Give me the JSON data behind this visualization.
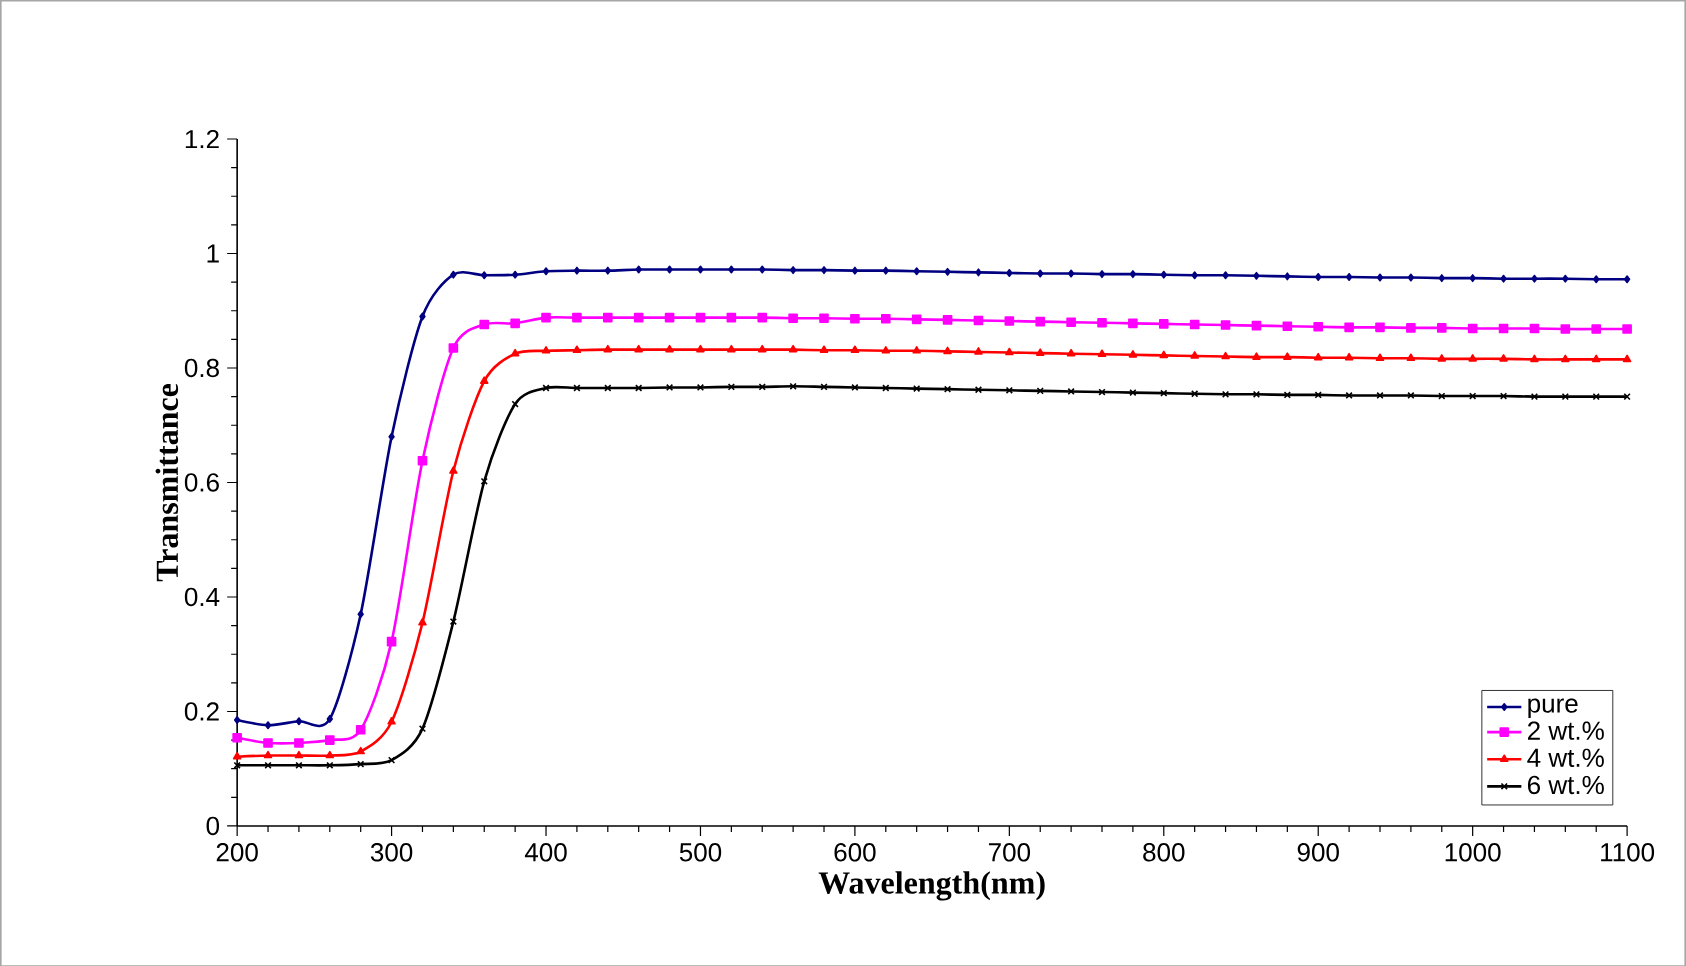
{
  "chart_data": {
    "type": "line",
    "xlabel": "Wavelength(nm)",
    "ylabel": "Transmittance",
    "x": [
      200,
      220,
      240,
      260,
      280,
      300,
      320,
      340,
      360,
      380,
      400,
      420,
      440,
      460,
      480,
      500,
      520,
      540,
      560,
      580,
      600,
      620,
      640,
      660,
      680,
      700,
      720,
      740,
      760,
      780,
      800,
      820,
      840,
      860,
      880,
      900,
      920,
      940,
      960,
      980,
      1000,
      1020,
      1040,
      1060,
      1080,
      1100
    ],
    "series": [
      {
        "name": "pure",
        "color": "#000080",
        "marker": "diamond",
        "values": [
          0.185,
          0.176,
          0.183,
          0.187,
          0.37,
          0.68,
          0.89,
          0.963,
          0.962,
          0.963,
          0.969,
          0.97,
          0.97,
          0.972,
          0.972,
          0.972,
          0.972,
          0.972,
          0.971,
          0.971,
          0.97,
          0.97,
          0.969,
          0.968,
          0.967,
          0.966,
          0.965,
          0.965,
          0.964,
          0.964,
          0.963,
          0.962,
          0.962,
          0.961,
          0.96,
          0.959,
          0.959,
          0.958,
          0.958,
          0.957,
          0.957,
          0.956,
          0.956,
          0.956,
          0.955,
          0.955
        ]
      },
      {
        "name": "2 wt.%",
        "color": "#ff00ff",
        "marker": "square",
        "values": [
          0.154,
          0.145,
          0.145,
          0.15,
          0.168,
          0.322,
          0.638,
          0.835,
          0.876,
          0.878,
          0.888,
          0.888,
          0.888,
          0.888,
          0.888,
          0.888,
          0.888,
          0.888,
          0.887,
          0.887,
          0.886,
          0.886,
          0.885,
          0.884,
          0.883,
          0.882,
          0.881,
          0.88,
          0.879,
          0.878,
          0.877,
          0.876,
          0.875,
          0.874,
          0.873,
          0.872,
          0.871,
          0.871,
          0.87,
          0.87,
          0.869,
          0.869,
          0.869,
          0.868,
          0.868,
          0.868
        ]
      },
      {
        "name": "4 wt.%",
        "color": "#ff0000",
        "marker": "triangle",
        "values": [
          0.121,
          0.123,
          0.123,
          0.123,
          0.13,
          0.182,
          0.355,
          0.62,
          0.777,
          0.825,
          0.83,
          0.831,
          0.832,
          0.832,
          0.832,
          0.832,
          0.832,
          0.832,
          0.832,
          0.831,
          0.831,
          0.83,
          0.83,
          0.829,
          0.828,
          0.827,
          0.826,
          0.825,
          0.824,
          0.823,
          0.822,
          0.821,
          0.82,
          0.819,
          0.819,
          0.818,
          0.818,
          0.817,
          0.817,
          0.816,
          0.816,
          0.816,
          0.815,
          0.815,
          0.815,
          0.815
        ]
      },
      {
        "name": "6 wt.%",
        "color": "#000000",
        "marker": "cross",
        "values": [
          0.106,
          0.106,
          0.106,
          0.106,
          0.108,
          0.115,
          0.17,
          0.357,
          0.602,
          0.737,
          0.765,
          0.765,
          0.765,
          0.765,
          0.766,
          0.766,
          0.767,
          0.767,
          0.768,
          0.767,
          0.766,
          0.765,
          0.764,
          0.763,
          0.762,
          0.761,
          0.76,
          0.759,
          0.758,
          0.757,
          0.756,
          0.755,
          0.754,
          0.754,
          0.753,
          0.753,
          0.752,
          0.752,
          0.752,
          0.751,
          0.751,
          0.751,
          0.75,
          0.75,
          0.75,
          0.75
        ]
      }
    ],
    "xlim": [
      200,
      1100
    ],
    "xticks": [
      200,
      300,
      400,
      500,
      600,
      700,
      800,
      900,
      1000,
      1100
    ],
    "ylim": [
      0,
      1.2
    ],
    "yticks": [
      0,
      0.2,
      0.4,
      0.6,
      0.8,
      1,
      1.2
    ],
    "grid": false,
    "legend": "bottom right",
    "line_style": "solid"
  }
}
